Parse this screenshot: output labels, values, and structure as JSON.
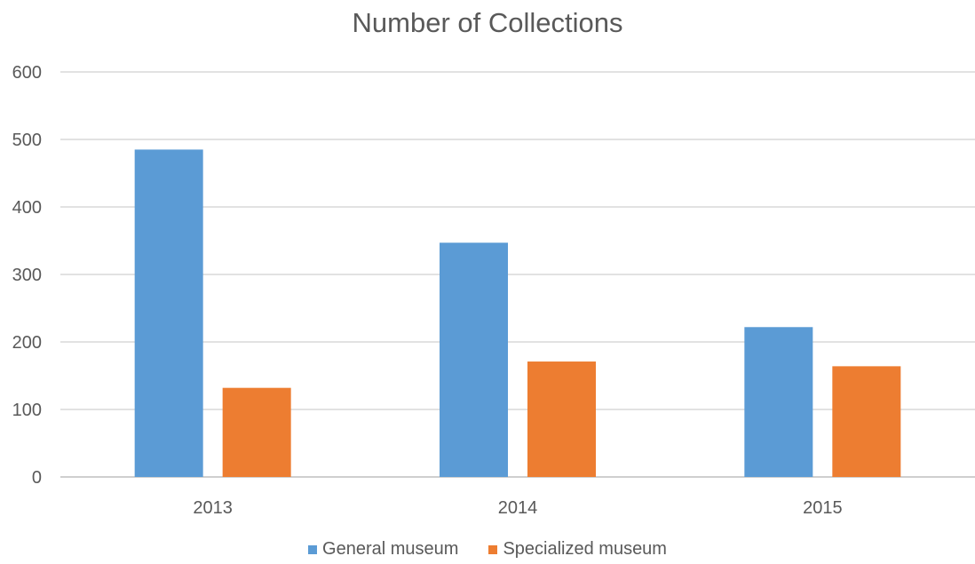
{
  "chart_data": {
    "type": "bar",
    "title": "Number of Collections",
    "xlabel": "",
    "ylabel": "",
    "categories": [
      "2013",
      "2014",
      "2015"
    ],
    "series": [
      {
        "name": "General museum",
        "values": [
          485,
          347,
          222
        ],
        "color": "#5B9BD5"
      },
      {
        "name": "Specialized museum",
        "values": [
          132,
          171,
          164
        ],
        "color": "#ED7D31"
      }
    ],
    "ylim": [
      0,
      600
    ],
    "yticks": [
      0,
      100,
      200,
      300,
      400,
      500,
      600
    ],
    "grid": true,
    "legend": "bottom"
  }
}
